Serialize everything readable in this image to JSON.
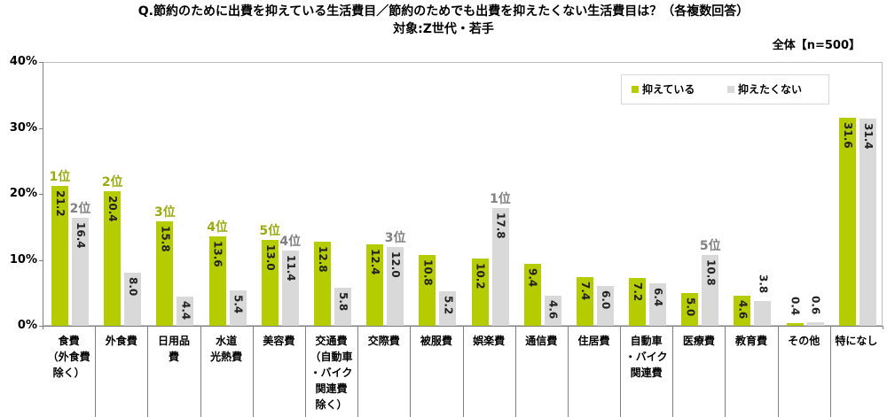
{
  "chart_data": {
    "type": "bar",
    "title": "Q.節約のために出費を抑えている生活費目／節約のためでも出費を抑えたくない生活費目は？（各複数回答）",
    "subtitle": "対象:Z世代・若手",
    "base_label": "全体【n=500】",
    "ylim": [
      0,
      40
    ],
    "yticks": [
      "0%",
      "10%",
      "20%",
      "30%",
      "40%"
    ],
    "grid": false,
    "legend_position": "top-right",
    "categories": [
      [
        "食費",
        "（外食費",
        "除く）"
      ],
      [
        "外食費"
      ],
      [
        "日用品",
        "費"
      ],
      [
        "水道",
        "光熱費"
      ],
      [
        "美容費"
      ],
      [
        "交通費",
        "（自動車",
        "・バイク",
        "関連費",
        "除く）"
      ],
      [
        "交際費"
      ],
      [
        "被服費"
      ],
      [
        "娯楽費"
      ],
      [
        "通信費"
      ],
      [
        "住居費"
      ],
      [
        "自動車",
        "・バイク",
        "関連費"
      ],
      [
        "医療費"
      ],
      [
        "教育費"
      ],
      [
        "その他"
      ],
      [
        "特になし"
      ]
    ],
    "series": [
      {
        "name": "抑えている",
        "color": "#b5cc00",
        "rank_color": "#9aab12",
        "values": [
          21.2,
          20.4,
          15.8,
          13.6,
          13.0,
          12.8,
          12.4,
          10.8,
          10.2,
          9.4,
          7.4,
          7.2,
          5.0,
          4.6,
          0.4,
          31.6
        ],
        "ranks": [
          "1位",
          "2位",
          "3位",
          "4位",
          "5位",
          null,
          null,
          null,
          null,
          null,
          null,
          null,
          null,
          null,
          null,
          null
        ]
      },
      {
        "name": "抑えたくない",
        "color": "#d9d9d9",
        "rank_color": "#808080",
        "values": [
          16.4,
          8.0,
          4.4,
          5.4,
          11.4,
          5.8,
          12.0,
          5.2,
          17.8,
          4.6,
          6.0,
          6.4,
          10.8,
          3.8,
          0.6,
          31.4
        ],
        "ranks": [
          "2位",
          null,
          null,
          null,
          "4位",
          null,
          "3位",
          null,
          "1位",
          null,
          null,
          null,
          "5位",
          null,
          null,
          null
        ]
      }
    ]
  }
}
